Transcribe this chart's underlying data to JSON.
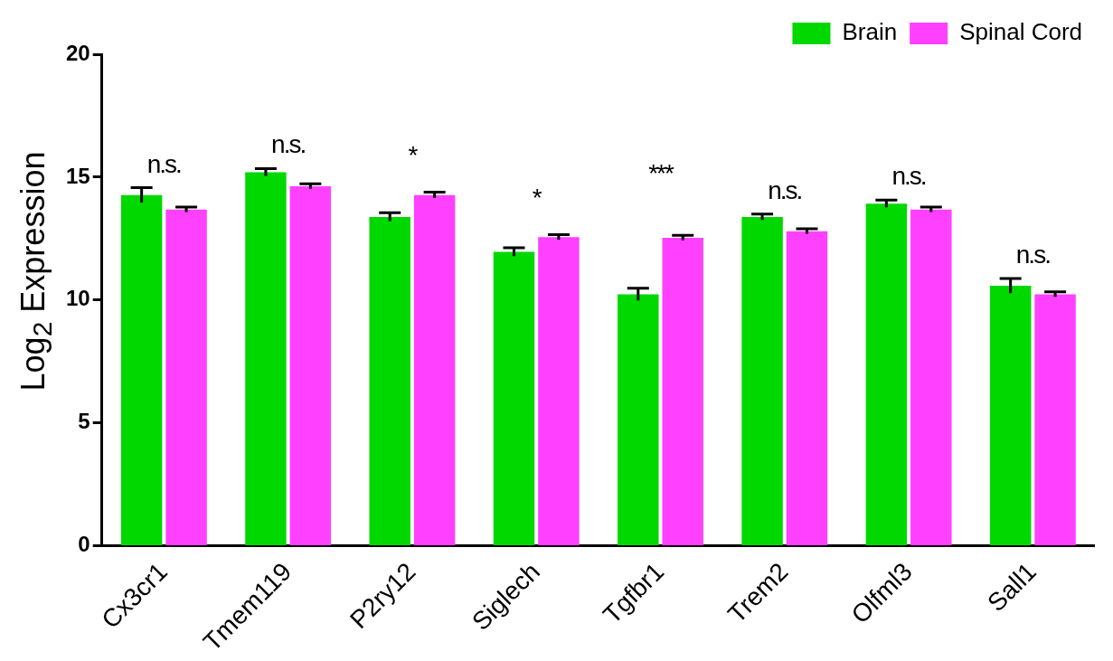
{
  "chart_data": {
    "type": "bar",
    "ylabel": "Log$_{2}$ Expression",
    "categories": [
      "Cx3cr1",
      "Tmem119",
      "P2ry12",
      "Siglech",
      "Tgfbr1",
      "Trem2",
      "Olfml3",
      "Sall1"
    ],
    "series": [
      {
        "name": "Brain",
        "color": "#00d800",
        "values": [
          14.27,
          15.2,
          13.38,
          11.96,
          10.23,
          13.38,
          13.92,
          10.58
        ],
        "errors": [
          0.3,
          0.15,
          0.17,
          0.17,
          0.25,
          0.12,
          0.15,
          0.3
        ]
      },
      {
        "name": "Spinal Cord",
        "color": "#ff40ff",
        "values": [
          13.68,
          14.63,
          14.27,
          12.56,
          12.53,
          12.8,
          13.68,
          10.23
        ],
        "errors": [
          0.1,
          0.1,
          0.12,
          0.1,
          0.1,
          0.1,
          0.1,
          0.1
        ]
      }
    ],
    "ylim": [
      0,
      20
    ],
    "yticks": [
      0,
      5,
      10,
      15,
      20
    ],
    "grid": false,
    "legend": "top right",
    "annotations": [
      "n.s.",
      "n.s.",
      "*",
      "*",
      "***",
      "n.s.",
      "n.s.",
      "n.s."
    ]
  }
}
